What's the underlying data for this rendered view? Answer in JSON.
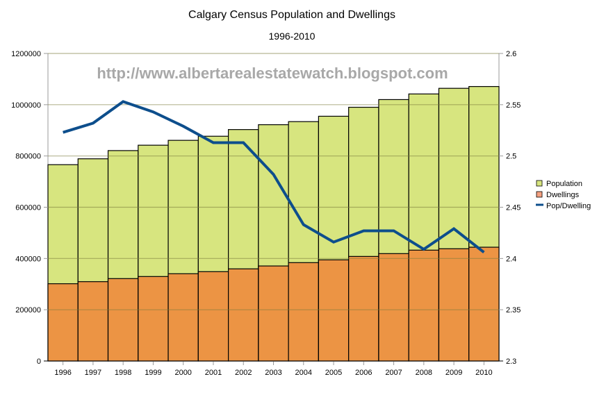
{
  "chart_data": {
    "type": "bar",
    "title": "Calgary Census Population and Dwellings",
    "subtitle": "1996-2010",
    "watermark": "http://www.albertarealestatewatch.blogspot.com",
    "categories": [
      "1996",
      "1997",
      "1998",
      "1999",
      "2000",
      "2001",
      "2002",
      "2003",
      "2004",
      "2005",
      "2006",
      "2007",
      "2008",
      "2009",
      "2010"
    ],
    "series": [
      {
        "name": "Population",
        "type": "bar",
        "axis": "left",
        "color": "#d7e57f",
        "values": [
          766000,
          789000,
          821000,
          842000,
          861000,
          877000,
          903000,
          922000,
          934000,
          955000,
          990000,
          1020000,
          1042000,
          1064000,
          1071000
        ]
      },
      {
        "name": "Dwellings",
        "type": "bar",
        "axis": "left",
        "color": "#ec9444",
        "values": [
          301500,
          309600,
          321500,
          329600,
          340500,
          348600,
          359500,
          370800,
          383800,
          394600,
          408000,
          419000,
          432500,
          438000,
          444000
        ]
      },
      {
        "name": "Pop/Dwelling",
        "type": "line",
        "axis": "right",
        "color": "#0d4e8c",
        "values": [
          2.523,
          2.532,
          2.553,
          2.543,
          2.529,
          2.513,
          2.513,
          2.482,
          2.433,
          2.416,
          2.427,
          2.427,
          2.409,
          2.429,
          2.406
        ]
      }
    ],
    "xlabel": "",
    "ylabel": "",
    "y_left": {
      "min": 0,
      "max": 1200000,
      "ticks": [
        "0",
        "200000",
        "400000",
        "600000",
        "800000",
        "1000000",
        "1200000"
      ]
    },
    "y_right": {
      "min": 2.3,
      "max": 2.6,
      "ticks": [
        "2.3",
        "2.35",
        "2.4",
        "2.45",
        "2.5",
        "2.55",
        "2.6"
      ]
    },
    "grid": true,
    "legend_position": "right",
    "legend": [
      {
        "label": "Population",
        "color": "#d7e57f",
        "kind": "box"
      },
      {
        "label": "Dwellings",
        "color": "#f4a080",
        "kind": "box"
      },
      {
        "label": "Pop/Dwelling",
        "color": "#0d4e8c",
        "kind": "line"
      }
    ]
  }
}
